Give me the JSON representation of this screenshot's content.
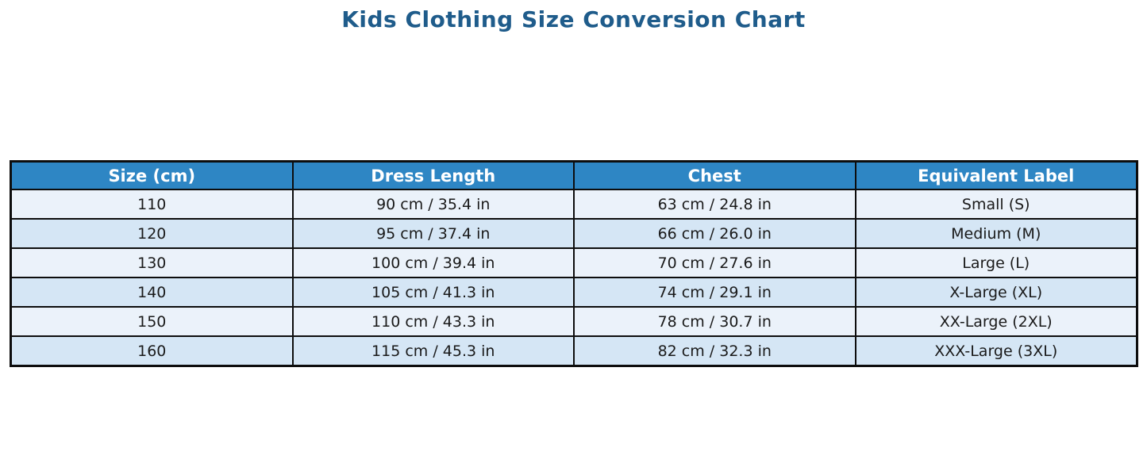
{
  "title": "Kids Clothing Size Conversion Chart",
  "colors": {
    "title_text": "#1f5c8b",
    "header_bg": "#2e86c4",
    "header_text": "#ffffff",
    "row_odd_bg": "#ebf2fa",
    "row_even_bg": "#d5e6f5",
    "cell_text": "#1a1a1a",
    "border": "#0d0d0d"
  },
  "chart_data": {
    "type": "table",
    "title": "Kids Clothing Size Conversion Chart",
    "headers": [
      "Size (cm)",
      "Dress Length",
      "Chest",
      "Equivalent Label"
    ],
    "rows": [
      [
        "110",
        "90 cm / 35.4 in",
        "63 cm / 24.8 in",
        "Small (S)"
      ],
      [
        "120",
        "95 cm / 37.4 in",
        "66 cm / 26.0 in",
        "Medium (M)"
      ],
      [
        "130",
        "100 cm / 39.4 in",
        "70 cm / 27.6 in",
        "Large (L)"
      ],
      [
        "140",
        "105 cm / 41.3 in",
        "74 cm / 29.1 in",
        "X-Large (XL)"
      ],
      [
        "150",
        "110 cm / 43.3 in",
        "78 cm / 30.7 in",
        "XX-Large (2XL)"
      ],
      [
        "160",
        "115 cm / 45.3 in",
        "82 cm / 32.3 in",
        "XXX-Large (3XL)"
      ]
    ]
  }
}
